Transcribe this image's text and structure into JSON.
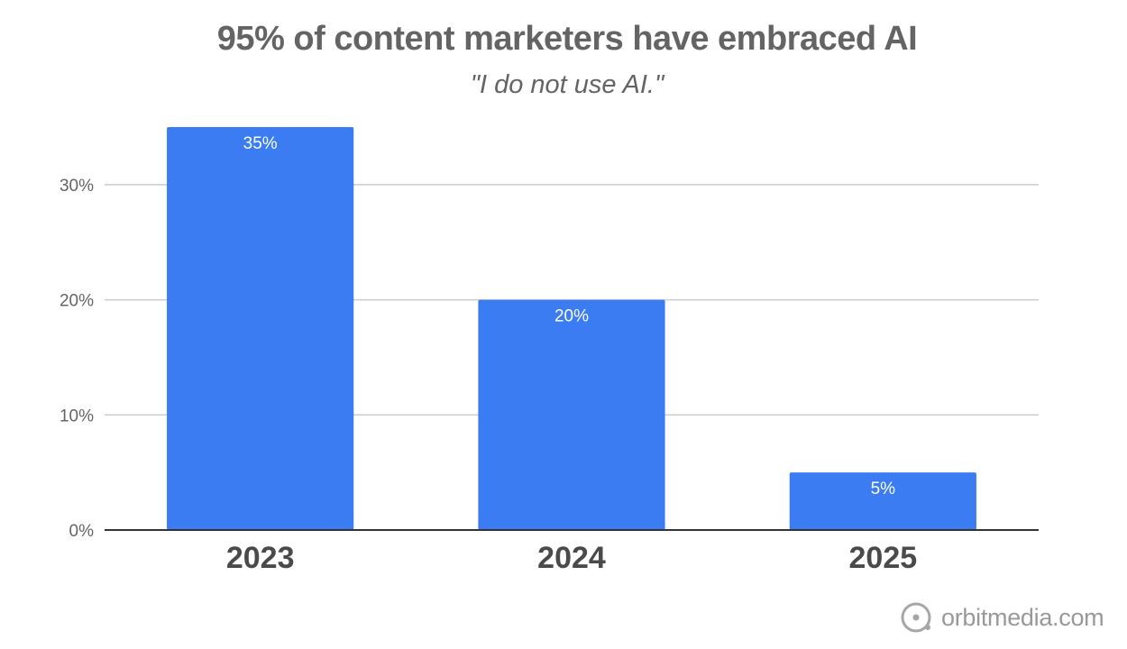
{
  "chart_data": {
    "type": "bar",
    "title": "95% of content marketers have embraced AI",
    "subtitle": "\"I do not use AI.\"",
    "categories": [
      "2023",
      "2024",
      "2025"
    ],
    "values": [
      35,
      20,
      5
    ],
    "data_labels": [
      "35%",
      "20%",
      "5%"
    ],
    "y_ticks": [
      0,
      10,
      20,
      30
    ],
    "y_tick_labels": [
      "0%",
      "10%",
      "20%",
      "30%"
    ],
    "ylim": [
      0,
      35
    ],
    "grid": true,
    "bar_color": "#3b7cf2",
    "grid_color": "#cccccc",
    "axis_color": "#333333",
    "text_color": "#646464",
    "category_color": "#4a4a4a"
  },
  "branding": {
    "text": "orbitmedia.com",
    "icon": "orbit-logo-icon"
  }
}
